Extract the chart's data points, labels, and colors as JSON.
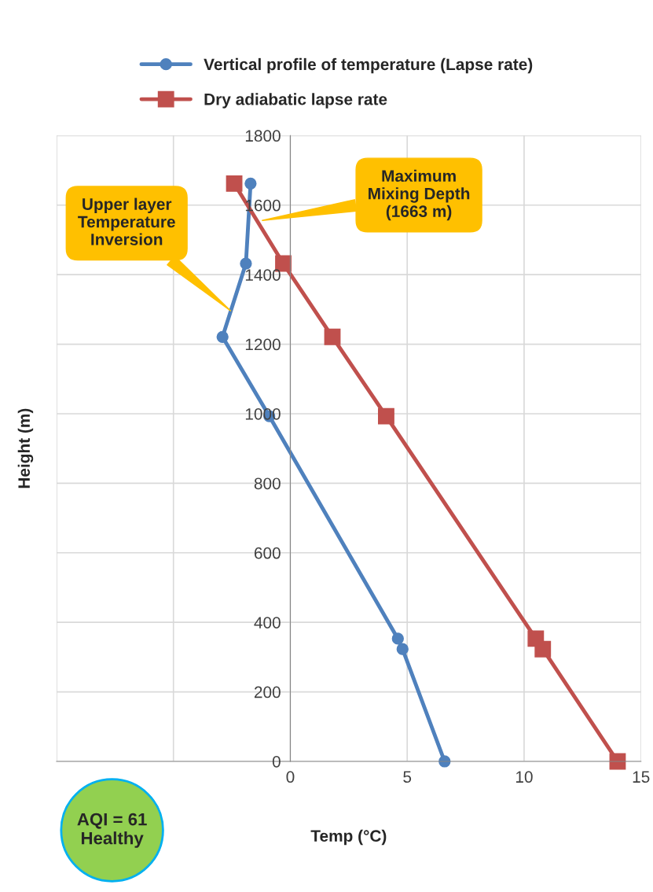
{
  "chart_data": {
    "type": "line",
    "xlabel": "Temp (°C)",
    "ylabel": "Height (m)",
    "series": [
      {
        "name": "Vertical profile of temperature (Lapse rate)",
        "color": "#4f81bd",
        "marker": "circle",
        "x": [
          6.6,
          4.8,
          4.6,
          -0.9,
          -2.9,
          -1.9,
          -1.7
        ],
        "values": [
          0,
          323,
          353,
          993,
          1221,
          1432,
          1662
        ]
      },
      {
        "name": "Dry adiabatic lapse rate",
        "color": "#c0504d",
        "marker": "square",
        "x": [
          14,
          10.8,
          10.5,
          4.1,
          1.8,
          -0.3,
          -2.4
        ],
        "values": [
          0,
          323,
          353,
          993,
          1221,
          1432,
          1662
        ]
      }
    ],
    "xlim": [
      -10,
      15
    ],
    "ylim": [
      0,
      1800
    ],
    "xticks": [
      {
        "value": -10,
        "label": null
      },
      {
        "value": -5,
        "label": null
      },
      0,
      5,
      10,
      15
    ],
    "yticks": [
      0,
      200,
      400,
      600,
      800,
      1000,
      1200,
      1400,
      1600,
      1800
    ],
    "grid": true,
    "legend": "top",
    "annotations": [
      "Upper layer\nTemperature\nInversion",
      {
        "text": "Maximum\nMixing Depth\n(1663 m)",
        "x": -1.2,
        "y": 1556
      },
      "AQI = 61\nHealthy"
    ]
  }
}
